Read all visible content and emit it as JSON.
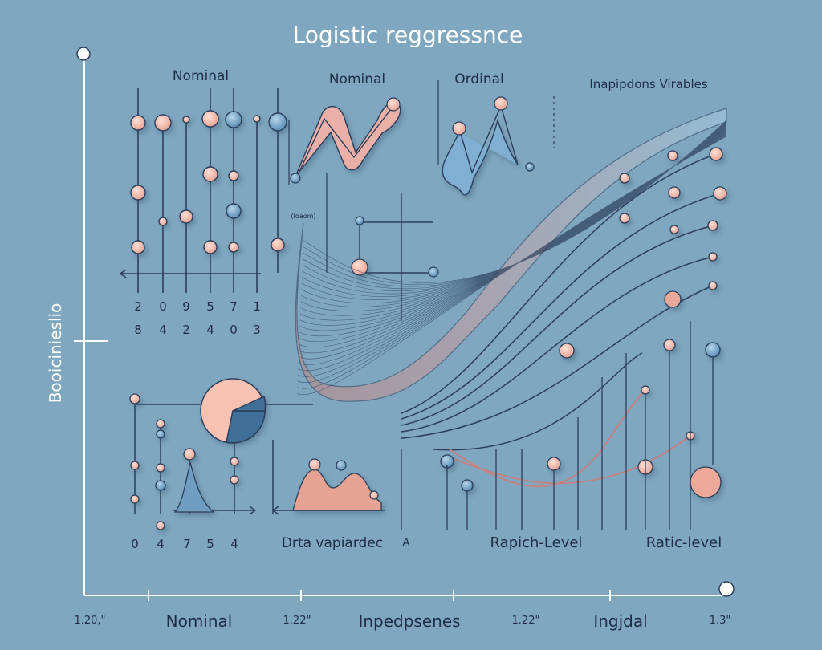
{
  "title": "Logistic reggressnce",
  "side_label": "Booicinieslio",
  "section_labels": {
    "nominal_left": "Nominal",
    "nominal_mid": "Nominal",
    "ordinal": "Ordinal",
    "independent": "Inapipdons Virables",
    "data_vapiardec": "Drta vapiardec",
    "a_mark": "A",
    "rapich_level": "Rapich-Level",
    "ratic_level": "Ratic-level",
    "tiny_label": "(Ioaom)"
  },
  "digit_rows": {
    "row1": [
      "2",
      "0",
      "9",
      "5",
      "7",
      "1"
    ],
    "row2": [
      "8",
      "4",
      "2",
      "4",
      "0",
      "3"
    ],
    "row3": [
      "0",
      "4",
      "7",
      "5",
      "4"
    ]
  },
  "bottom_axis": {
    "ticks": [
      "1.20,\"",
      "1.22\"",
      "1.22\"",
      "1.3\""
    ],
    "labels": [
      "Nominal",
      "Inpedpsenes",
      "Ingjdal"
    ]
  },
  "colors": {
    "background": "#7fa7bf",
    "line": "#2c3e5a",
    "pink": "#f2b8a8",
    "blue": "#6f9ec2",
    "curve_pink": "#c98f8a",
    "curve_blue": "#a9cde3"
  }
}
